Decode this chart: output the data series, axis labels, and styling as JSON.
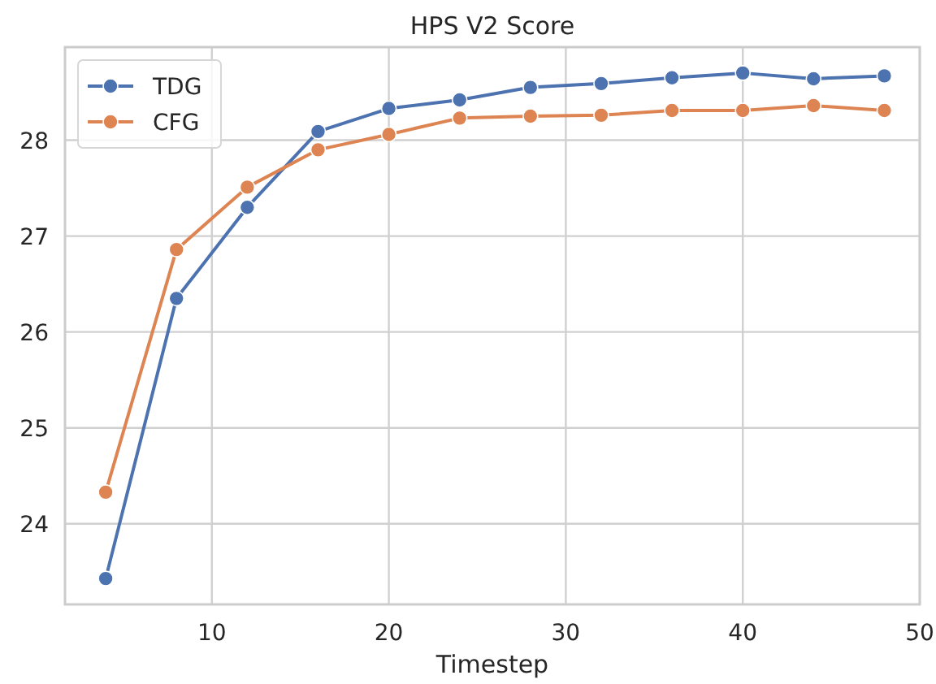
{
  "chart_data": {
    "type": "line",
    "title": "HPS V2 Score",
    "xlabel": "Timestep",
    "x": [
      4,
      8,
      12,
      16,
      20,
      24,
      28,
      32,
      36,
      40,
      44,
      48
    ],
    "series": [
      {
        "name": "TDG",
        "color": "#4c72b0",
        "values": [
          23.43,
          26.35,
          27.3,
          28.09,
          28.33,
          28.42,
          28.55,
          28.59,
          28.65,
          28.7,
          28.64,
          28.67
        ]
      },
      {
        "name": "CFG",
        "color": "#dd8452",
        "values": [
          24.33,
          26.86,
          27.51,
          27.9,
          28.06,
          28.23,
          28.25,
          28.26,
          28.31,
          28.31,
          28.36,
          28.31
        ]
      }
    ],
    "xlim": [
      1.7,
      50
    ],
    "ylim": [
      23.16,
      28.97
    ],
    "xticks": [
      10,
      20,
      30,
      40,
      50
    ],
    "yticks": [
      24,
      25,
      26,
      27,
      28
    ],
    "grid": true,
    "legend": "top left",
    "marker": "circle",
    "line_style": "solid"
  }
}
